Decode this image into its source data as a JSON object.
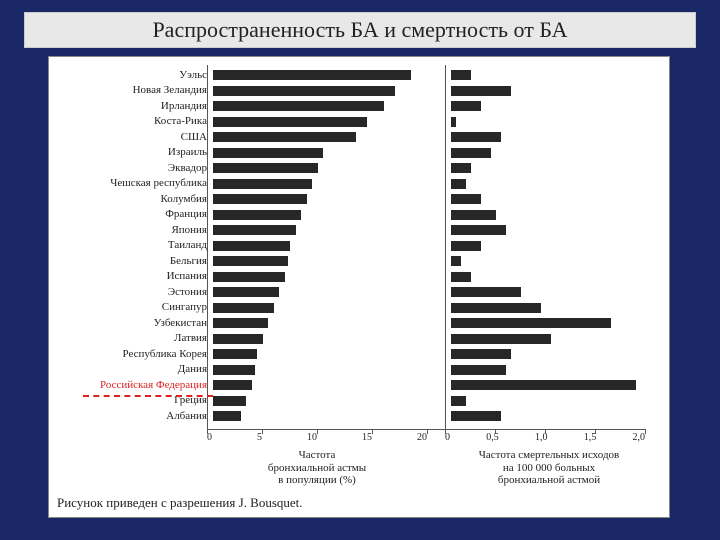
{
  "title": "Распространенность БА и смертность от БА",
  "chart": {
    "type": "bar",
    "bar_color": "#272727",
    "highlight_color": "#d22",
    "background_color": "#ffffff",
    "slide_background": "#1a2766",
    "label_fontsize": 11,
    "tick_fontsize": 10,
    "left": {
      "xlim": [
        0,
        20
      ],
      "ticks": [
        "0",
        "5",
        "10",
        "15",
        "20"
      ],
      "axis_label": "Частота\nбронхиальной астмы\nв популяции (%)"
    },
    "right": {
      "xlim": [
        0,
        2.0
      ],
      "ticks": [
        "0",
        "0,5",
        "1,0",
        "1,5",
        "2,0"
      ],
      "axis_label": "Частота смертельных исходов\nна 100 000 больных\nбронхиальной астмой"
    },
    "categories": [
      {
        "label": "Уэльс",
        "l": 18.0,
        "r": 0.2
      },
      {
        "label": "Новая Зеландия",
        "l": 16.5,
        "r": 0.6
      },
      {
        "label": "Ирландия",
        "l": 15.5,
        "r": 0.3
      },
      {
        "label": "Коста-Рика",
        "l": 14.0,
        "r": 0.05
      },
      {
        "label": "США",
        "l": 13.0,
        "r": 0.5
      },
      {
        "label": "Израиль",
        "l": 10.0,
        "r": 0.4
      },
      {
        "label": "Эквадор",
        "l": 9.5,
        "r": 0.2
      },
      {
        "label": "Чешская республика",
        "l": 9.0,
        "r": 0.15
      },
      {
        "label": "Колумбия",
        "l": 8.5,
        "r": 0.3
      },
      {
        "label": "Франция",
        "l": 8.0,
        "r": 0.45
      },
      {
        "label": "Япония",
        "l": 7.5,
        "r": 0.55
      },
      {
        "label": "Таиланд",
        "l": 7.0,
        "r": 0.3
      },
      {
        "label": "Бельгия",
        "l": 6.8,
        "r": 0.1
      },
      {
        "label": "Испания",
        "l": 6.5,
        "r": 0.2
      },
      {
        "label": "Эстония",
        "l": 6.0,
        "r": 0.7
      },
      {
        "label": "Сингапур",
        "l": 5.5,
        "r": 0.9
      },
      {
        "label": "Узбекистан",
        "l": 5.0,
        "r": 1.6
      },
      {
        "label": "Латвия",
        "l": 4.5,
        "r": 1.0
      },
      {
        "label": "Республика Корея",
        "l": 4.0,
        "r": 0.6
      },
      {
        "label": "Дания",
        "l": 3.8,
        "r": 0.55
      },
      {
        "label": "Российская Федерация",
        "l": 3.5,
        "r": 1.85,
        "highlight": true
      },
      {
        "label": "Греция",
        "l": 3.0,
        "r": 0.15
      },
      {
        "label": "Албания",
        "l": 2.5,
        "r": 0.5
      }
    ],
    "citation": "Рисунок приведен с разрешения J. Bousquet."
  }
}
